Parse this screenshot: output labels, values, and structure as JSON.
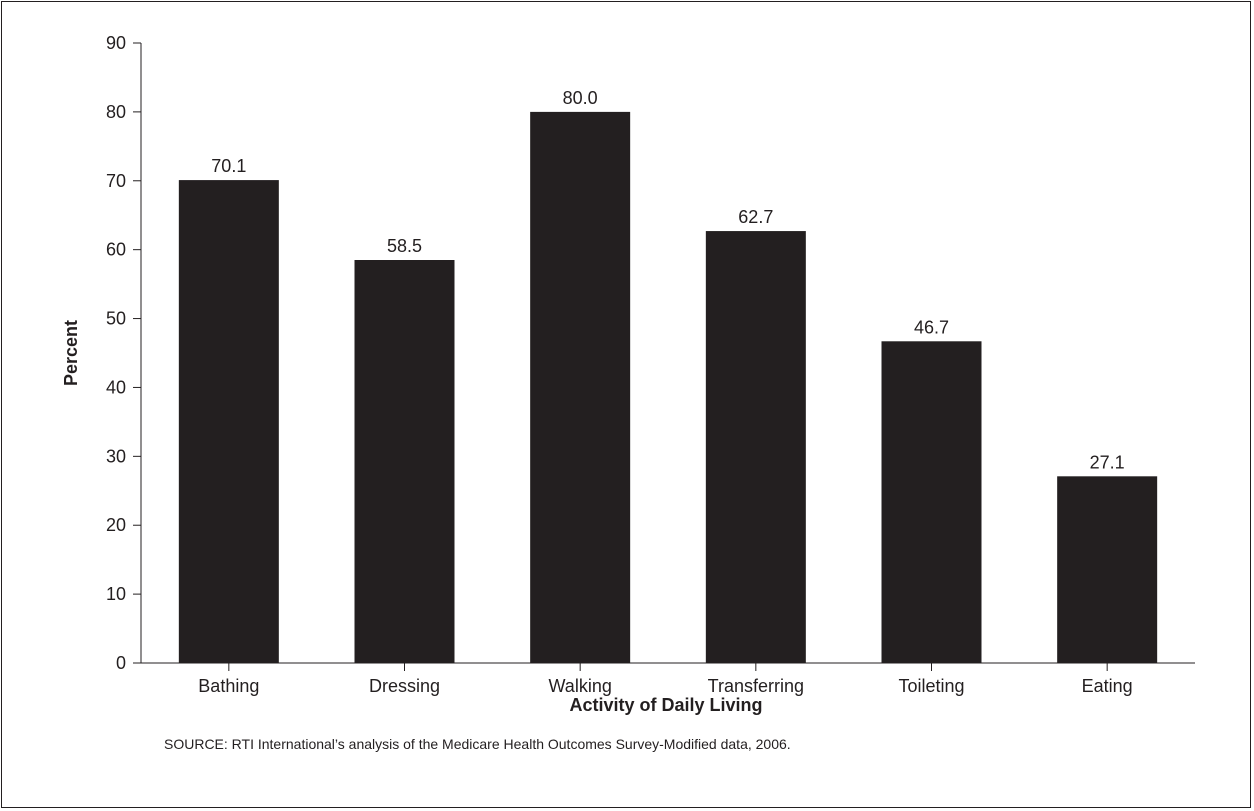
{
  "chart_data": {
    "type": "bar",
    "categories": [
      "Bathing",
      "Dressing",
      "Walking",
      "Transferring",
      "Toileting",
      "Eating"
    ],
    "values": [
      70.1,
      58.5,
      80.0,
      62.7,
      46.7,
      27.1
    ],
    "data_labels": [
      "70.1",
      "58.5",
      "80.0",
      "62.7",
      "46.7",
      "27.1"
    ],
    "title": "",
    "xlabel": "Activity of Daily Living",
    "ylabel": "Percent",
    "ylim": [
      0,
      90
    ],
    "yticks": [
      0,
      10,
      20,
      30,
      40,
      50,
      60,
      70,
      80,
      90
    ],
    "grid": false,
    "legend": "none",
    "bar_color": "#231f20"
  },
  "source": "SOURCE: RTI International’s analysis of the Medicare Health Outcomes Survey-Modified data, 2006."
}
